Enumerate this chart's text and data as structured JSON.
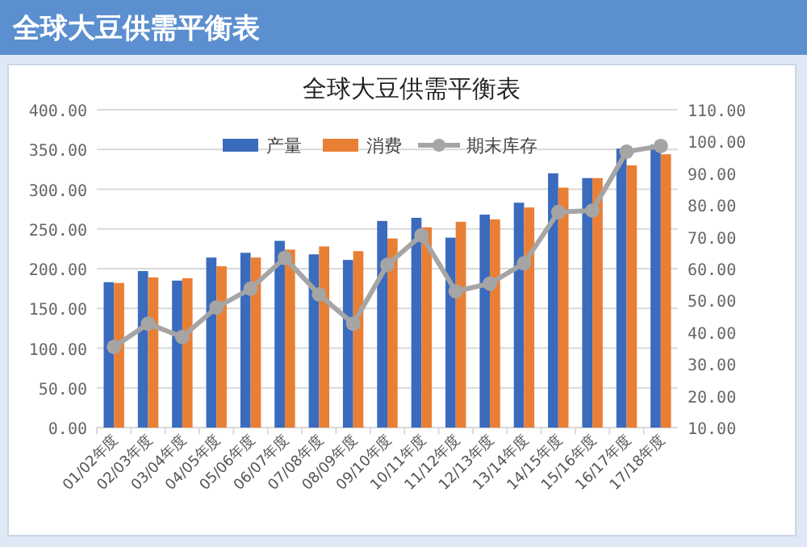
{
  "chart_data": {
    "type": "bar",
    "title": "全球大豆供需平衡表",
    "annotations": [
      "全球大豆供需平衡表"
    ],
    "categories": [
      "01/02年度",
      "02/03年度",
      "03/04年度",
      "04/05年度",
      "05/06年度",
      "06/07年度",
      "07/08年度",
      "08/09年度",
      "09/10年度",
      "10/11年度",
      "11/12年度",
      "12/13年度",
      "13/14年度",
      "14/15年度",
      "15/16年度",
      "16/17年度",
      "17/18年度"
    ],
    "series": [
      {
        "name": "产量",
        "color": "#3a6bbd",
        "values": [
          183,
          197,
          185,
          214,
          220,
          235,
          218,
          211,
          260,
          264,
          239,
          268,
          283,
          320,
          314,
          351,
          356
        ]
      },
      {
        "name": "消费",
        "color": "#e97f35",
        "values": [
          182,
          189,
          188,
          203,
          214,
          224,
          228,
          222,
          238,
          252,
          259,
          262,
          277,
          302,
          314,
          330,
          344
        ]
      },
      {
        "name": "期末库存",
        "type": "line",
        "axis": "y2",
        "color": "#a5a5a5",
        "marker": "circle",
        "values": [
          35.4,
          42.7,
          38.5,
          47.8,
          53.7,
          63.4,
          51.9,
          42.7,
          61.2,
          70.5,
          52.9,
          55.3,
          61.7,
          77.8,
          78.3,
          96.8,
          98.6
        ]
      }
    ],
    "ylim": [
      0,
      400
    ],
    "yticks": [
      {
        "value": 0,
        "label": "0.00"
      },
      {
        "value": 50,
        "label": "50.00"
      },
      {
        "value": 100,
        "label": "100.00"
      },
      {
        "value": 150,
        "label": "150.00"
      },
      {
        "value": 200,
        "label": "200.00"
      },
      {
        "value": 250,
        "label": "250.00"
      },
      {
        "value": 300,
        "label": "300.00"
      },
      {
        "value": 350,
        "label": "350.00"
      },
      {
        "value": 400,
        "label": "400.00"
      }
    ],
    "y2lim": [
      10,
      110
    ],
    "y2ticks": [
      {
        "value": 10,
        "label": "10.00"
      },
      {
        "value": 20,
        "label": "20.00"
      },
      {
        "value": 30,
        "label": "30.00"
      },
      {
        "value": 40,
        "label": "40.00"
      },
      {
        "value": 50,
        "label": "50.00"
      },
      {
        "value": 60,
        "label": "60.00"
      },
      {
        "value": 70,
        "label": "70.00"
      },
      {
        "value": 80,
        "label": "80.00"
      },
      {
        "value": 90,
        "label": "90.00"
      },
      {
        "value": 100,
        "label": "100.00"
      },
      {
        "value": 110,
        "label": "110.00"
      }
    ],
    "grid": "y",
    "legend": "top"
  }
}
